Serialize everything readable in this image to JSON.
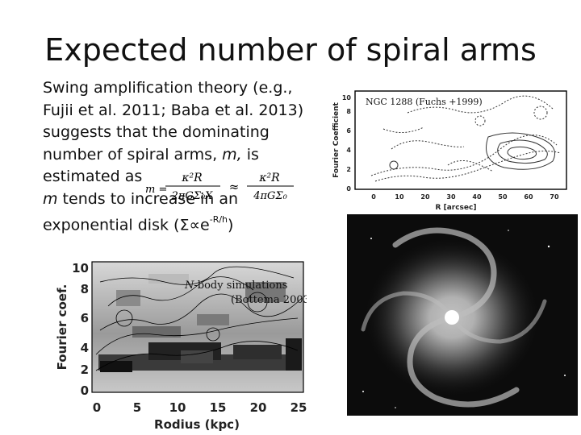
{
  "slide": {
    "title": "Expected number of spiral arms",
    "body": {
      "line1": "Swing amplification theory (e.g.,",
      "line2": "Fujii et al. 2011; Baba et al. 2013)",
      "line3": "suggests that the dominating",
      "line4_pre": "number of spiral arms, ",
      "line4_var": "m,",
      "line4_post": " is",
      "line5": "estimated as",
      "line6_var": "m",
      "line6_post": " tends to increase in an",
      "line7_pre": "exponential disk (Σ∝e",
      "line7_sup": "-R/h",
      "line7_post": ")"
    },
    "formula": {
      "num1": "κ²R",
      "den1": "2πGΣ₀X",
      "approx": "≈",
      "num2": "κ²R",
      "den2": "4πGΣ₀"
    }
  },
  "top_figure": {
    "caption": "NGC 1288 (Fuchs +1999)",
    "ylabel": "Fourier Coefficient",
    "xlabel": "R [arcsec]",
    "xticks": [
      "0",
      "10",
      "20",
      "30",
      "40",
      "50",
      "60",
      "70"
    ],
    "yticks": [
      "0",
      "2",
      "4",
      "6",
      "8",
      "10"
    ]
  },
  "bottom_figure": {
    "caption_italic": "N",
    "caption_line1": "-body simulations",
    "caption_line2": "(Bottema 2003)",
    "ylabel": "Fourier coef.",
    "xlabel": "Rodius (kpc)",
    "xticks": [
      "0",
      "5",
      "10",
      "15",
      "20",
      "25"
    ],
    "yticks": [
      "0",
      "2",
      "4",
      "6",
      "8",
      "10"
    ]
  },
  "galaxy_image": {
    "colors": {
      "core": "#ffffff",
      "arm": "#cfcfcf",
      "background": "#0c0c0c"
    }
  }
}
